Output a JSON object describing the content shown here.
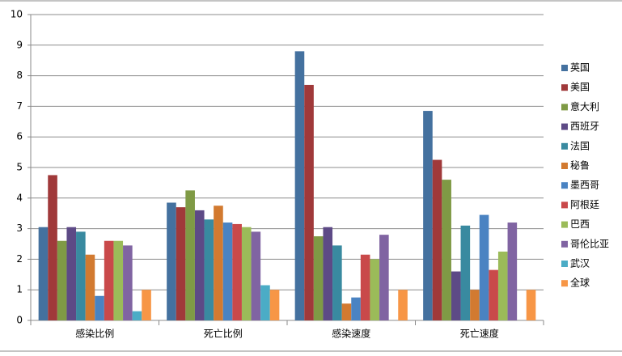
{
  "chart_data": {
    "type": "bar",
    "categories": [
      "感染比例",
      "死亡比例",
      "感染速度",
      "死亡速度"
    ],
    "series": [
      {
        "name": "英国",
        "color": "#44719f",
        "values": [
          3.05,
          3.85,
          8.8,
          6.85
        ]
      },
      {
        "name": "美国",
        "color": "#a0393a",
        "values": [
          4.75,
          3.7,
          7.7,
          5.25
        ]
      },
      {
        "name": "意大利",
        "color": "#7f9a45",
        "values": [
          2.6,
          4.25,
          2.75,
          4.6
        ]
      },
      {
        "name": "西班牙",
        "color": "#5d4a86",
        "values": [
          3.05,
          3.6,
          3.05,
          1.6
        ]
      },
      {
        "name": "法国",
        "color": "#398aa0",
        "values": [
          2.9,
          3.3,
          2.45,
          3.1
        ]
      },
      {
        "name": "秘鲁",
        "color": "#d27a30",
        "values": [
          2.15,
          3.75,
          0.55,
          1.0
        ]
      },
      {
        "name": "墨西哥",
        "color": "#4a83c2",
        "values": [
          0.8,
          3.2,
          0.75,
          3.45
        ]
      },
      {
        "name": "阿根廷",
        "color": "#c9494a",
        "values": [
          2.6,
          3.15,
          2.15,
          1.65
        ]
      },
      {
        "name": "巴西",
        "color": "#9bbb59",
        "values": [
          2.6,
          3.05,
          2.0,
          2.25
        ]
      },
      {
        "name": "哥伦比亚",
        "color": "#8064a2",
        "values": [
          2.45,
          2.9,
          2.8,
          3.2
        ]
      },
      {
        "name": "武汉",
        "color": "#4bacc6",
        "values": [
          0.3,
          1.15,
          null,
          null
        ]
      },
      {
        "name": "全球",
        "color": "#f79646",
        "values": [
          1,
          1,
          1,
          1
        ]
      }
    ],
    "ylim": [
      0,
      10
    ],
    "yticks": [
      0,
      1,
      2,
      3,
      4,
      5,
      6,
      7,
      8,
      9,
      10
    ],
    "grid": true,
    "legend": "right"
  }
}
